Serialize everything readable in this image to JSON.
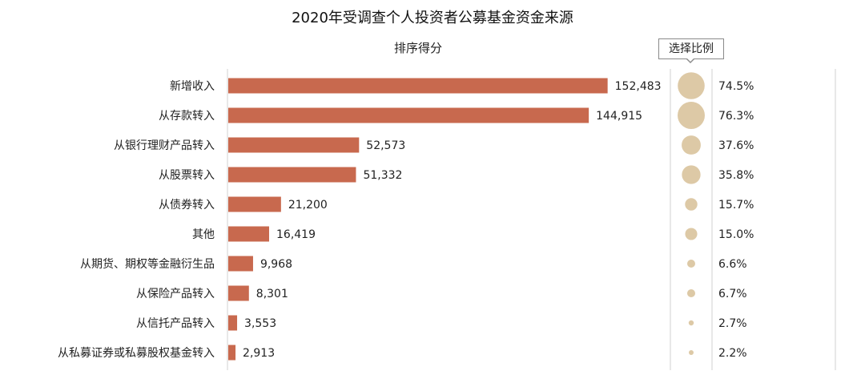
{
  "chart_data": {
    "type": "bar",
    "orientation": "horizontal",
    "title": "2020年受调查个人投资者公募基金资金来源",
    "bar_header": "排序得分",
    "bubble_header": "选择比例",
    "categories": [
      "新增收入",
      "从存款转入",
      "从银行理财产品转入",
      "从股票转入",
      "从债券转入",
      "其他",
      "从期货、期权等金融衍生品",
      "从保险产品转入",
      "从信托产品转入",
      "从私募证券或私募股权基金转入"
    ],
    "series": [
      {
        "name": "排序得分",
        "values": [
          152483,
          144915,
          52573,
          51332,
          21200,
          16419,
          9968,
          8301,
          3553,
          2913
        ],
        "labels": [
          "152,483",
          "144,915",
          "52,573",
          "51,332",
          "21,200",
          "16,419",
          "9,968",
          "8,301",
          "3,553",
          "2,913"
        ]
      },
      {
        "name": "选择比例",
        "values": [
          74.5,
          76.3,
          37.6,
          35.8,
          15.7,
          15.0,
          6.6,
          6.7,
          2.7,
          2.2
        ],
        "labels": [
          "74.5%",
          "76.3%",
          "37.6%",
          "35.8%",
          "15.7%",
          "15.0%",
          "6.6%",
          "6.7%",
          "2.7%",
          "2.2%"
        ]
      }
    ],
    "xlim": [
      0,
      160000
    ],
    "grid": false,
    "colors": {
      "bar": "#c8694e",
      "bubble": "#ddc9a6",
      "divider": "#d0d0d0"
    }
  }
}
